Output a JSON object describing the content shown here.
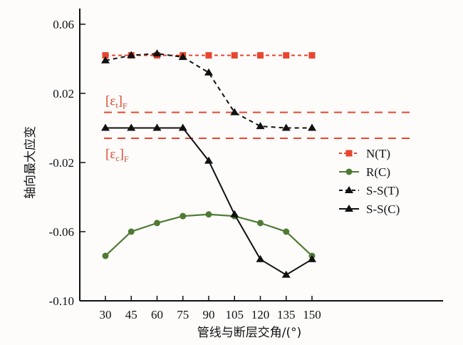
{
  "chart_data": {
    "type": "line",
    "title": "",
    "xlabel": "管线与断层交角/(°)",
    "ylabel": "轴向最大应变",
    "x": [
      30,
      45,
      60,
      75,
      90,
      105,
      120,
      135,
      150
    ],
    "xticks": [
      "30",
      "45",
      "60",
      "75",
      "90",
      "105",
      "120",
      "135",
      "150"
    ],
    "xlim": [
      17,
      167
    ],
    "ylim": [
      -0.1,
      0.06
    ],
    "yticks": [
      0.06,
      0.02,
      -0.02,
      -0.06,
      -0.1
    ],
    "ytick_labels": [
      "0.06",
      "0.02",
      "-0.02",
      "-0.06",
      "-0.10"
    ],
    "grid": false,
    "legend_position": "right",
    "series": [
      {
        "name": "N(T)",
        "color": "#e8452f",
        "dash": "dotted",
        "marker": "square",
        "values": [
          0.042,
          0.042,
          0.042,
          0.042,
          0.042,
          0.042,
          0.042,
          0.042,
          0.042
        ]
      },
      {
        "name": "R(C)",
        "color": "#4f7a34",
        "dash": "solid",
        "marker": "circle",
        "values": [
          -0.074,
          -0.06,
          -0.055,
          -0.051,
          -0.05,
          -0.051,
          -0.055,
          -0.06,
          -0.074
        ]
      },
      {
        "name": "S-S(T)",
        "color": "#111111",
        "dash": "dashed",
        "marker": "triangle",
        "values": [
          0.039,
          0.042,
          0.043,
          0.041,
          0.032,
          0.009,
          0.001,
          0.0,
          0.0
        ]
      },
      {
        "name": "S-S(C)",
        "color": "#111111",
        "dash": "solid",
        "marker": "triangle",
        "values": [
          0.0,
          0.0,
          0.0,
          0.0,
          -0.019,
          -0.05,
          -0.076,
          -0.085,
          -0.076
        ]
      }
    ],
    "reference_lines": [
      {
        "label_main": "[ε",
        "label_sub": "t",
        "label_end": "]",
        "label_subF": "F",
        "value": 0.009,
        "color": "#e8452f"
      },
      {
        "label_main": "[ε",
        "label_sub": "c",
        "label_end": "]",
        "label_subF": "F",
        "value": -0.006,
        "color": "#e8452f"
      }
    ]
  }
}
